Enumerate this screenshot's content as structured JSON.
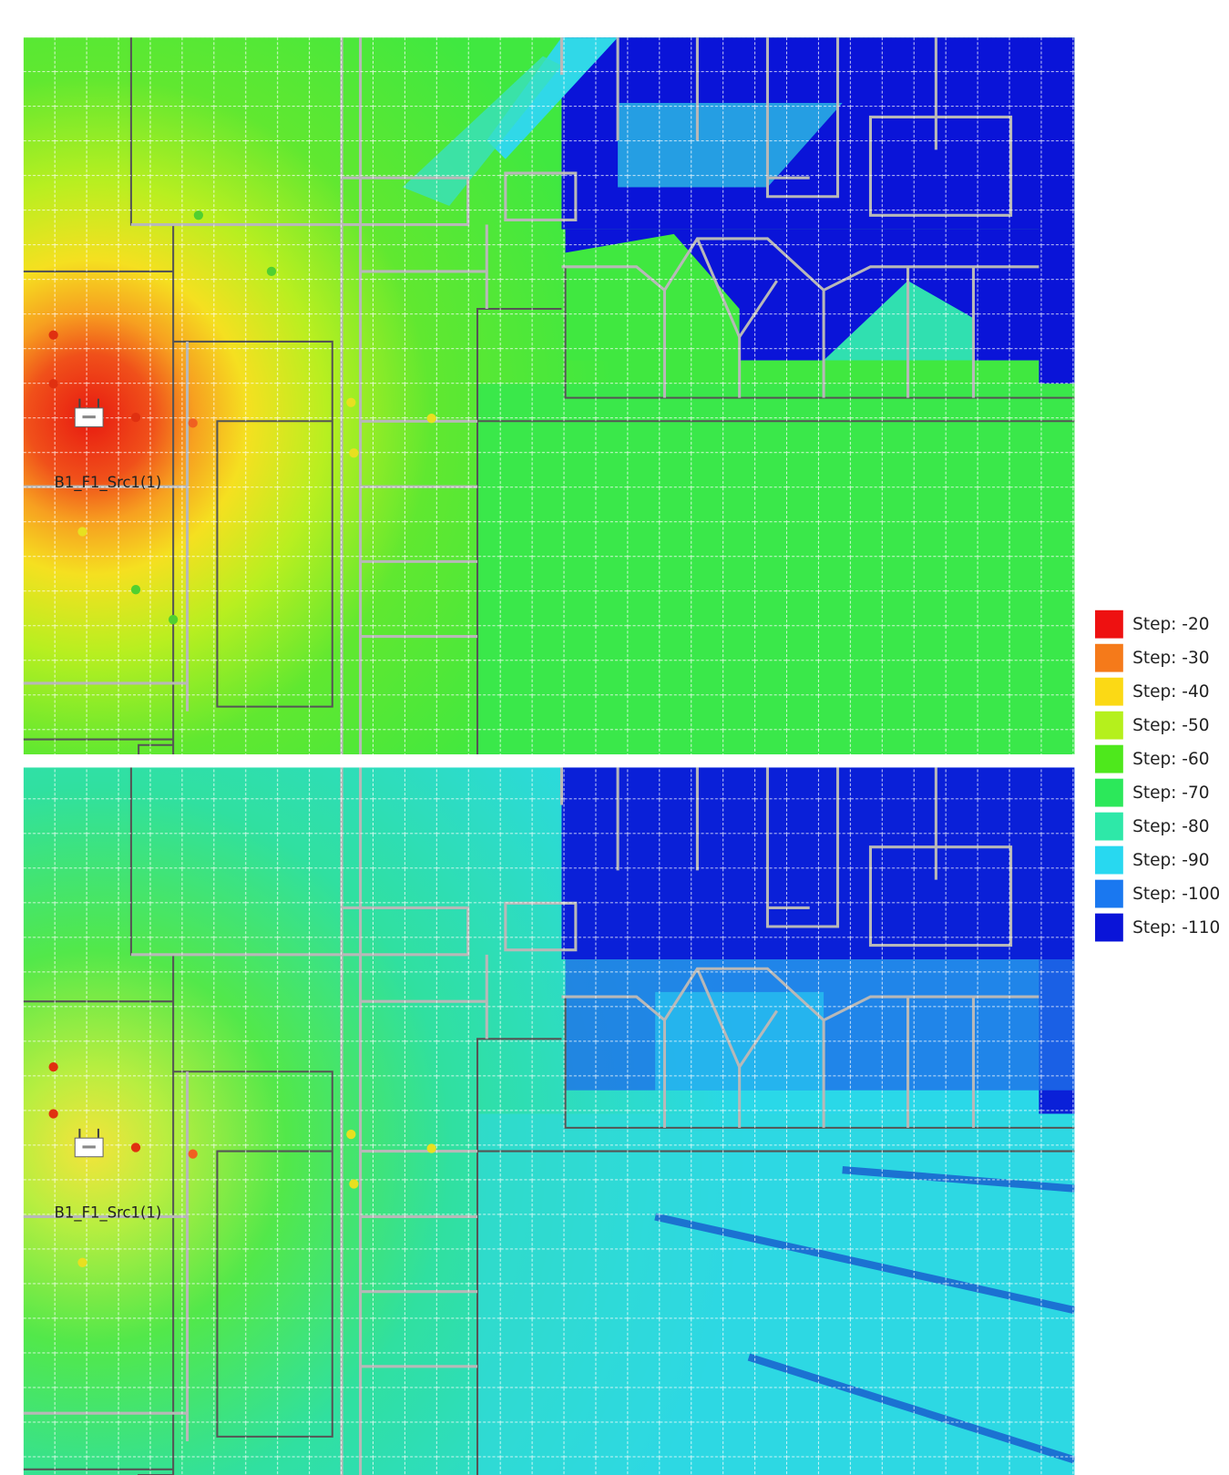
{
  "panels": [
    {
      "source_label": "B1_F1_Src1(1)"
    },
    {
      "source_label": "B1_F1_Src1(1)"
    }
  ],
  "legend": [
    {
      "label": "Step: -20",
      "color": "#ee1111"
    },
    {
      "label": "Step: -30",
      "color": "#f57a1a"
    },
    {
      "label": "Step: -40",
      "color": "#fbd915"
    },
    {
      "label": "Step: -50",
      "color": "#b5f01c"
    },
    {
      "label": "Step: -60",
      "color": "#4ee81c"
    },
    {
      "label": "Step: -70",
      "color": "#2ce85a"
    },
    {
      "label": "Step: -80",
      "color": "#2ee8a8"
    },
    {
      "label": "Step: -90",
      "color": "#28d8f0"
    },
    {
      "label": "Step: -100",
      "color": "#1a78f0"
    },
    {
      "label": "Step: -110",
      "color": "#0a14d8"
    }
  ]
}
